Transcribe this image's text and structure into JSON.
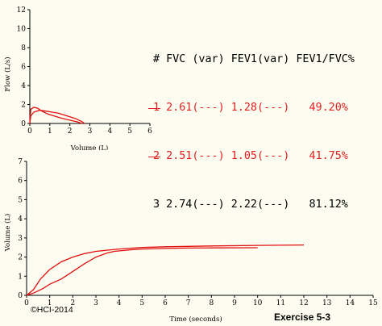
{
  "chart_data": [
    {
      "type": "line",
      "title": "",
      "xlabel": "Volume (L)",
      "ylabel": "Flow (L/s)",
      "xlim": [
        0,
        6
      ],
      "ylim": [
        0,
        12
      ],
      "x_ticks": [
        "0",
        "1",
        "2",
        "3",
        "4",
        "5",
        "6"
      ],
      "y_ticks": [
        "0",
        "2",
        "4",
        "6",
        "8",
        "10",
        "12"
      ],
      "grid": false,
      "series": [
        {
          "x": [
            0,
            0.05,
            0.2,
            0.4,
            0.6,
            0.9,
            1.2,
            1.5,
            1.8,
            2.1,
            2.4,
            2.61
          ],
          "y": [
            0,
            1.5,
            1.7,
            1.6,
            1.3,
            1.0,
            0.8,
            0.6,
            0.45,
            0.3,
            0.15,
            0
          ]
        },
        {
          "x": [
            0,
            0.05,
            0.2,
            0.5,
            0.8,
            1.1,
            1.4,
            1.7,
            2.0,
            2.3,
            2.6,
            2.74
          ],
          "y": [
            0,
            0.8,
            1.2,
            1.4,
            1.3,
            1.2,
            1.1,
            0.9,
            0.7,
            0.5,
            0.2,
            0
          ]
        }
      ]
    },
    {
      "type": "line",
      "title": "",
      "xlabel": "Time (seconds)",
      "ylabel": "Volume (L)",
      "xlim": [
        0,
        15
      ],
      "ylim": [
        0,
        7
      ],
      "x_ticks": [
        "0",
        "1",
        "2",
        "3",
        "4",
        "5",
        "6",
        "7",
        "8",
        "9",
        "10",
        "11",
        "12",
        "13",
        "14",
        "15"
      ],
      "y_ticks": [
        "0",
        "1",
        "2",
        "3",
        "4",
        "5",
        "6",
        "7"
      ],
      "grid": false,
      "series": [
        {
          "x": [
            0,
            0.3,
            0.6,
            1.0,
            1.5,
            2.0,
            2.5,
            3.0,
            3.5,
            4.0,
            5.0,
            6.0,
            8.0,
            10.0,
            12.0
          ],
          "y": [
            0,
            0.3,
            0.85,
            1.35,
            1.75,
            2.0,
            2.18,
            2.3,
            2.36,
            2.42,
            2.5,
            2.54,
            2.58,
            2.61,
            2.63
          ]
        },
        {
          "x": [
            0,
            0.3,
            0.7,
            1.0,
            1.5,
            2.0,
            2.5,
            3.0,
            3.5,
            3.8,
            4.5,
            5.0,
            6.0,
            7.0,
            8.0,
            10.0
          ],
          "y": [
            0,
            0.12,
            0.35,
            0.58,
            0.85,
            1.25,
            1.65,
            2.0,
            2.22,
            2.3,
            2.38,
            2.42,
            2.45,
            2.47,
            2.48,
            2.49
          ]
        }
      ]
    }
  ],
  "results": {
    "header": {
      "num": "#",
      "fvc": "FVC (var)",
      "fev1": "FEV1(var)",
      "ratio": "FEV1/FVC%"
    },
    "rows": [
      {
        "trial": "1",
        "fvc": "2.61(---)",
        "fev1": "1.28(---)",
        "ratio": "49.20%",
        "status": "rejected"
      },
      {
        "trial": "2",
        "fvc": "2.51(---)",
        "fev1": "1.05(---)",
        "ratio": "41.75%",
        "status": "rejected"
      },
      {
        "trial": "3",
        "fvc": "2.74(---)",
        "fev1": "2.22(---)",
        "ratio": "81.12%",
        "status": "accepted"
      }
    ]
  },
  "footer": {
    "copyright": "©HCI-2014",
    "exercise": "Exercise 5-3"
  },
  "colors": {
    "curve": "#e01010",
    "rejected_text": "#e02020",
    "background": "#fdfcf0"
  }
}
